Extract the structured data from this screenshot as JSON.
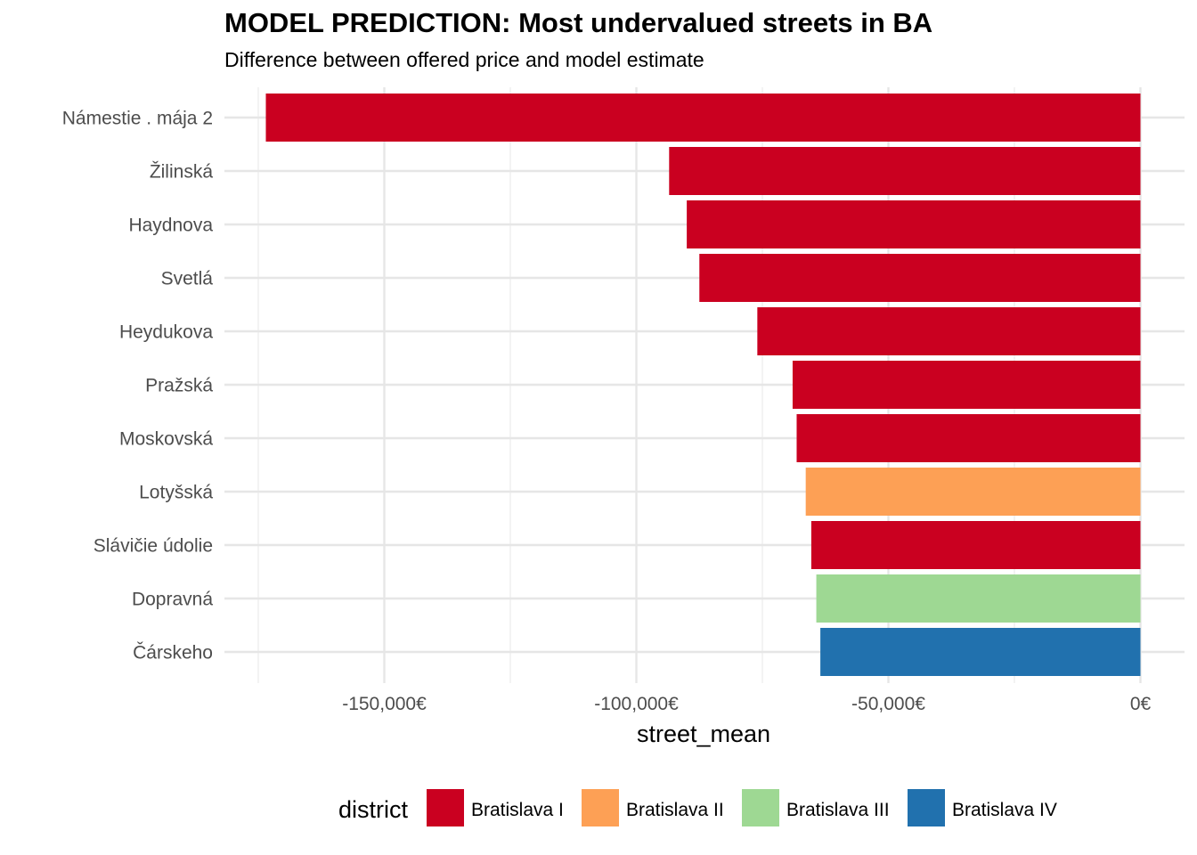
{
  "chart_data": {
    "type": "bar",
    "orientation": "horizontal",
    "title": "MODEL PREDICTION: Most undervalued streets in BA",
    "subtitle": "Difference between offered price and model estimate",
    "xlabel": "street_mean",
    "ylabel": "",
    "xlim": [
      -176000,
      8500
    ],
    "x_ticks": [
      -150000,
      -100000,
      -50000,
      0
    ],
    "x_tick_labels": [
      "-150,000€",
      "-100,000€",
      "-50,000€",
      "0€"
    ],
    "grid": true,
    "legend": {
      "title": "district",
      "placement": "bottom",
      "entries": [
        {
          "name": "Bratislava I",
          "color": "#CA0020"
        },
        {
          "name": "Bratislava II",
          "color": "#FDA055"
        },
        {
          "name": "Bratislava III",
          "color": "#9ED893"
        },
        {
          "name": "Bratislava IV",
          "color": "#2171AE"
        }
      ]
    },
    "bars": [
      {
        "category": "Námestie . mája 2",
        "value": -173500,
        "district": "Bratislava I"
      },
      {
        "category": "Žilinská",
        "value": -93500,
        "district": "Bratislava I"
      },
      {
        "category": "Haydnova",
        "value": -90000,
        "district": "Bratislava I"
      },
      {
        "category": "Svetlá",
        "value": -87500,
        "district": "Bratislava I"
      },
      {
        "category": "Heydukova",
        "value": -76000,
        "district": "Bratislava I"
      },
      {
        "category": "Pražská",
        "value": -69000,
        "district": "Bratislava I"
      },
      {
        "category": "Moskovská",
        "value": -68200,
        "district": "Bratislava I"
      },
      {
        "category": "Lotyšská",
        "value": -66400,
        "district": "Bratislava II"
      },
      {
        "category": "Slávičie údolie",
        "value": -65300,
        "district": "Bratislava I"
      },
      {
        "category": "Dopravná",
        "value": -64300,
        "district": "Bratislava III"
      },
      {
        "category": "Čárskeho",
        "value": -63500,
        "district": "Bratislava IV"
      }
    ]
  }
}
